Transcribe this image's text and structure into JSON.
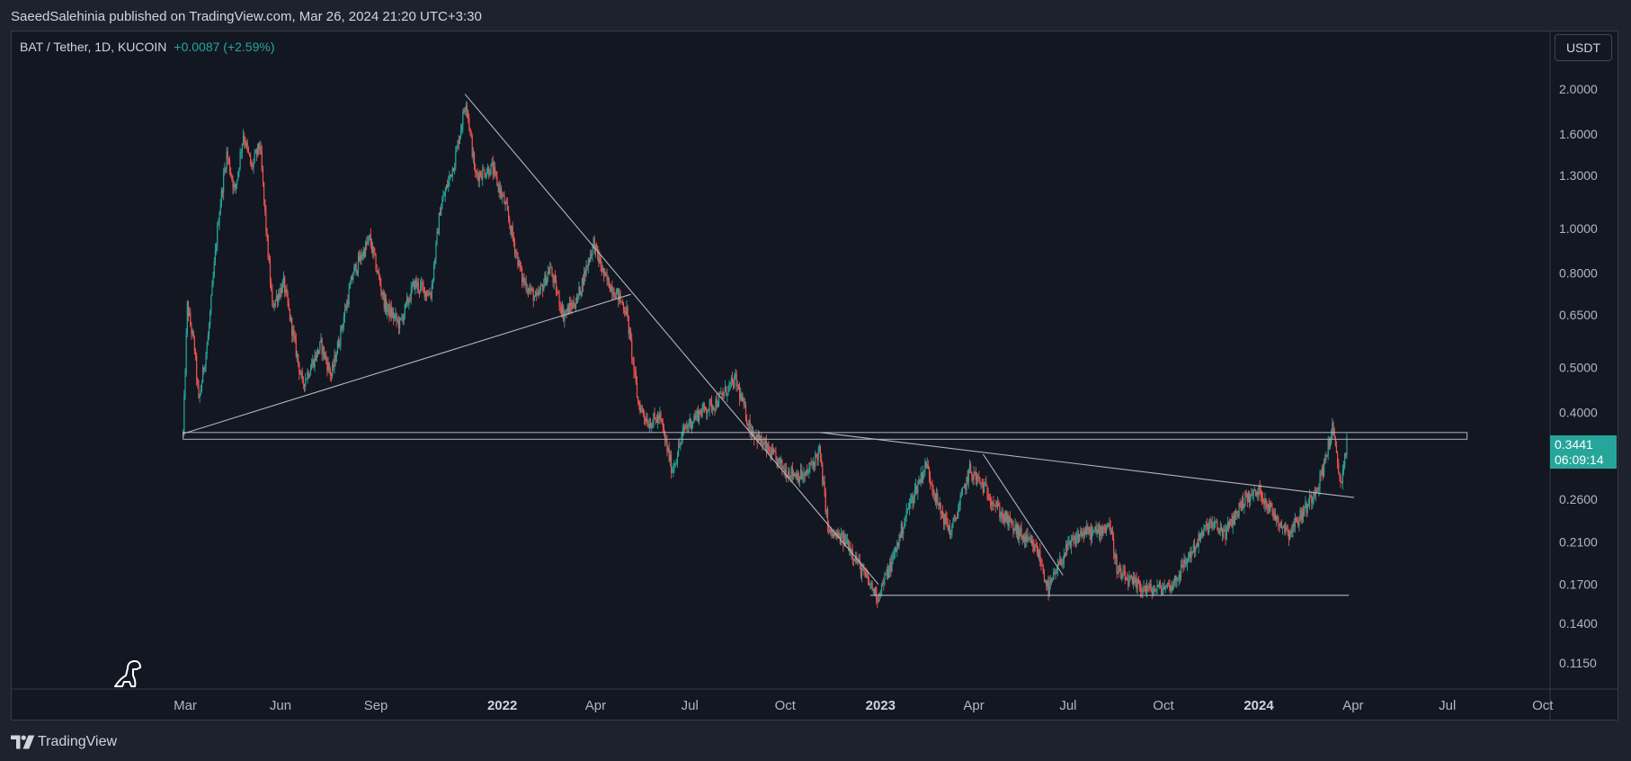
{
  "header": {
    "published_text": "SaeedSalehinia published on TradingView.com, Mar 26, 2024 21:20 UTC+3:30"
  },
  "legend": {
    "symbol_text": "BAT / Tether, 1D, KUCOIN",
    "change_text": "+0.0087 (+2.59%)"
  },
  "currency_label": "USDT",
  "last_price": {
    "value": "0.3441",
    "countdown": "06:09:14"
  },
  "footer": {
    "brand": "TradingView"
  },
  "colors": {
    "up": "#26a69a",
    "down": "#ef5350",
    "line": "#b2b5be",
    "background": "#131722"
  },
  "chart_data": {
    "type": "candlestick",
    "title": "BAT / Tether, 1D, KUCOIN",
    "y_scale": "log",
    "y_axis_labels": [
      "2.0000",
      "1.6000",
      "1.3000",
      "1.0000",
      "0.8000",
      "0.6500",
      "0.5000",
      "0.4000",
      "0.2600",
      "0.2100",
      "0.1700",
      "0.1400",
      "0.1150"
    ],
    "x_axis_labels": [
      {
        "label": "Mar",
        "bold": false
      },
      {
        "label": "Jun",
        "bold": false
      },
      {
        "label": "Sep",
        "bold": false
      },
      {
        "label": "2022",
        "bold": true
      },
      {
        "label": "Apr",
        "bold": false
      },
      {
        "label": "Jul",
        "bold": false
      },
      {
        "label": "Oct",
        "bold": false
      },
      {
        "label": "2023",
        "bold": true
      },
      {
        "label": "Apr",
        "bold": false
      },
      {
        "label": "Jul",
        "bold": false
      },
      {
        "label": "Oct",
        "bold": false
      },
      {
        "label": "2024",
        "bold": true
      },
      {
        "label": "Apr",
        "bold": false
      },
      {
        "label": "Jul",
        "bold": false
      },
      {
        "label": "Oct",
        "bold": false
      }
    ],
    "price_path": [
      [
        "2021-02-27",
        0.36
      ],
      [
        "2021-03-03",
        0.68
      ],
      [
        "2021-03-10",
        0.55
      ],
      [
        "2021-03-14",
        0.42
      ],
      [
        "2021-03-23",
        0.58
      ],
      [
        "2021-04-02",
        1.05
      ],
      [
        "2021-04-10",
        1.45
      ],
      [
        "2021-04-18",
        1.2
      ],
      [
        "2021-04-26",
        1.6
      ],
      [
        "2021-05-04",
        1.35
      ],
      [
        "2021-05-12",
        1.52
      ],
      [
        "2021-05-18",
        1.0
      ],
      [
        "2021-05-24",
        0.68
      ],
      [
        "2021-06-04",
        0.76
      ],
      [
        "2021-06-22",
        0.46
      ],
      [
        "2021-07-10",
        0.56
      ],
      [
        "2021-07-20",
        0.48
      ],
      [
        "2021-08-10",
        0.8
      ],
      [
        "2021-08-26",
        0.95
      ],
      [
        "2021-09-10",
        0.68
      ],
      [
        "2021-09-24",
        0.62
      ],
      [
        "2021-10-08",
        0.76
      ],
      [
        "2021-10-24",
        0.72
      ],
      [
        "2021-11-02",
        1.1
      ],
      [
        "2021-11-16",
        1.4
      ],
      [
        "2021-11-27",
        1.9
      ],
      [
        "2021-12-06",
        1.3
      ],
      [
        "2021-12-22",
        1.35
      ],
      [
        "2022-01-04",
        1.12
      ],
      [
        "2022-01-20",
        0.78
      ],
      [
        "2022-02-03",
        0.7
      ],
      [
        "2022-02-16",
        0.82
      ],
      [
        "2022-03-01",
        0.65
      ],
      [
        "2022-03-14",
        0.7
      ],
      [
        "2022-03-30",
        0.93
      ],
      [
        "2022-04-10",
        0.78
      ],
      [
        "2022-04-22",
        0.72
      ],
      [
        "2022-05-01",
        0.66
      ],
      [
        "2022-05-12",
        0.42
      ],
      [
        "2022-05-22",
        0.38
      ],
      [
        "2022-06-02",
        0.39
      ],
      [
        "2022-06-14",
        0.3
      ],
      [
        "2022-06-26",
        0.37
      ],
      [
        "2022-07-10",
        0.4
      ],
      [
        "2022-07-26",
        0.42
      ],
      [
        "2022-08-14",
        0.47
      ],
      [
        "2022-08-28",
        0.37
      ],
      [
        "2022-09-15",
        0.33
      ],
      [
        "2022-10-01",
        0.3
      ],
      [
        "2022-10-20",
        0.29
      ],
      [
        "2022-11-03",
        0.33
      ],
      [
        "2022-11-12",
        0.22
      ],
      [
        "2022-11-30",
        0.21
      ],
      [
        "2022-12-15",
        0.18
      ],
      [
        "2022-12-29",
        0.16
      ],
      [
        "2023-01-12",
        0.19
      ],
      [
        "2023-01-28",
        0.25
      ],
      [
        "2023-02-14",
        0.31
      ],
      [
        "2023-02-26",
        0.25
      ],
      [
        "2023-03-10",
        0.22
      ],
      [
        "2023-03-28",
        0.3
      ],
      [
        "2023-04-14",
        0.27
      ],
      [
        "2023-04-28",
        0.24
      ],
      [
        "2023-05-14",
        0.22
      ],
      [
        "2023-06-02",
        0.2
      ],
      [
        "2023-06-12",
        0.165
      ],
      [
        "2023-06-28",
        0.2
      ],
      [
        "2023-07-14",
        0.22
      ],
      [
        "2023-07-28",
        0.22
      ],
      [
        "2023-08-10",
        0.23
      ],
      [
        "2023-08-18",
        0.18
      ],
      [
        "2023-09-02",
        0.17
      ],
      [
        "2023-09-20",
        0.165
      ],
      [
        "2023-10-10",
        0.17
      ],
      [
        "2023-10-28",
        0.2
      ],
      [
        "2023-11-14",
        0.23
      ],
      [
        "2023-11-30",
        0.22
      ],
      [
        "2023-12-18",
        0.26
      ],
      [
        "2024-01-02",
        0.27
      ],
      [
        "2024-01-16",
        0.24
      ],
      [
        "2024-01-30",
        0.22
      ],
      [
        "2024-02-16",
        0.25
      ],
      [
        "2024-03-01",
        0.29
      ],
      [
        "2024-03-12",
        0.37
      ],
      [
        "2024-03-20",
        0.28
      ],
      [
        "2024-03-26",
        0.3441
      ]
    ],
    "drawings": [
      {
        "type": "trendline",
        "from": [
          "2021-02-27",
          0.36
        ],
        "to": [
          "2022-05-05",
          0.72
        ]
      },
      {
        "type": "trendline",
        "from": [
          "2021-11-26",
          1.95
        ],
        "to": [
          "2022-12-30",
          0.17
        ]
      },
      {
        "type": "rectangle",
        "from": [
          "2021-02-27",
          0.35
        ],
        "to": [
          "2024-07-20",
          0.362
        ]
      },
      {
        "type": "trendline",
        "from": [
          "2022-11-04",
          0.362
        ],
        "to": [
          "2024-04-02",
          0.262
        ]
      },
      {
        "type": "trendline",
        "from": [
          "2023-04-10",
          0.325
        ],
        "to": [
          "2023-06-26",
          0.178
        ]
      },
      {
        "type": "horizontal_segment",
        "from": [
          "2022-12-22",
          0.161
        ],
        "to": [
          "2024-03-28",
          0.161
        ]
      }
    ]
  }
}
